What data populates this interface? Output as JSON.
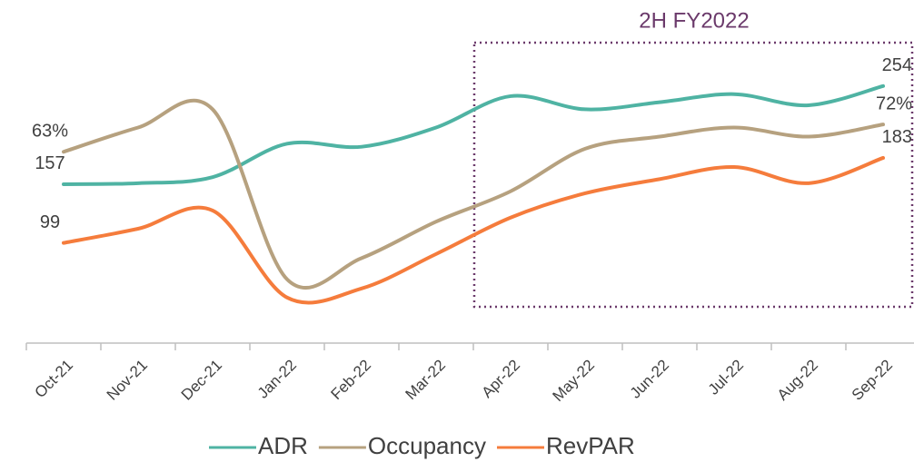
{
  "chart_data": {
    "type": "line",
    "annotation": "2H FY2022",
    "categories": [
      "Oct-21",
      "Nov-21",
      "Dec-21",
      "Jan-22",
      "Feb-22",
      "Mar-22",
      "Apr-22",
      "May-22",
      "Jun-22",
      "Jul-22",
      "Aug-22",
      "Sep-22"
    ],
    "series": [
      {
        "name": "ADR",
        "color": "#4fb3a3",
        "values": [
          157,
          158,
          164,
          197,
          194,
          213,
          244,
          231,
          238,
          246,
          235,
          254
        ],
        "value_labels": [
          "157",
          null,
          null,
          null,
          null,
          null,
          null,
          null,
          null,
          null,
          null,
          "254"
        ]
      },
      {
        "name": "Occupancy",
        "color": "#b6a17f",
        "axis": "y2",
        "values": [
          63,
          71,
          77,
          21,
          28,
          40,
          50,
          64,
          68,
          71,
          68,
          72
        ],
        "value_labels": [
          "63%",
          null,
          null,
          null,
          null,
          null,
          null,
          null,
          null,
          null,
          null,
          "72%"
        ]
      },
      {
        "name": "RevPAR",
        "color": "#f57c3c",
        "values": [
          99,
          113,
          131,
          45,
          54,
          88,
          124,
          148,
          162,
          174,
          158,
          183
        ],
        "value_labels": [
          "99",
          null,
          null,
          null,
          null,
          null,
          null,
          null,
          null,
          null,
          null,
          "183"
        ]
      }
    ],
    "ylim": [
      0,
      300
    ],
    "y2lim": [
      0,
      100
    ]
  }
}
